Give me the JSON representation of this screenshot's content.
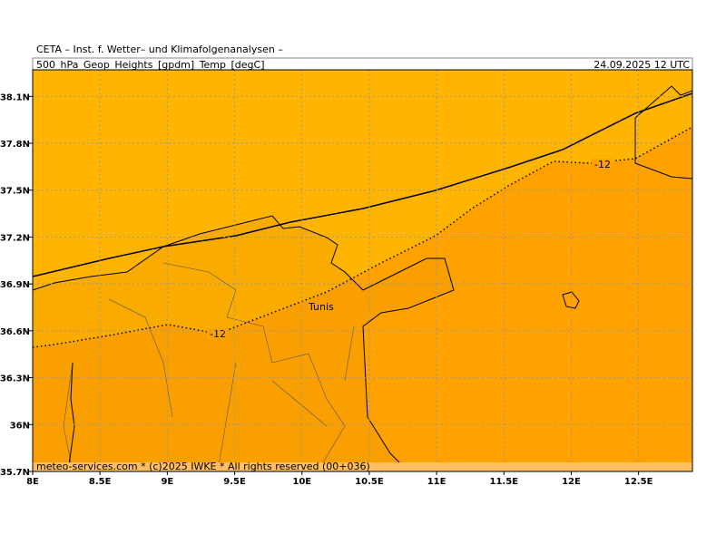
{
  "header": {
    "title": "CETA – Inst. f. Wetter– und Klimafolgenanalysen –",
    "field": "500_hPa_Geop_Heights_[gpdm]_Temp_[degC]",
    "valid_time": "24.09.2025 12 UTC"
  },
  "map": {
    "xlim": [
      8,
      12.9
    ],
    "ylim": [
      35.7,
      38.27
    ],
    "xticks": [
      {
        "value": 8,
        "label": "8E"
      },
      {
        "value": 8.5,
        "label": "8.5E"
      },
      {
        "value": 9,
        "label": "9E"
      },
      {
        "value": 9.5,
        "label": "9.5E"
      },
      {
        "value": 10,
        "label": "10E"
      },
      {
        "value": 10.5,
        "label": "10.5E"
      },
      {
        "value": 11,
        "label": "11E"
      },
      {
        "value": 11.5,
        "label": "11.5E"
      },
      {
        "value": 12,
        "label": "12E"
      },
      {
        "value": 12.5,
        "label": "12.5E"
      }
    ],
    "yticks": [
      {
        "value": 35.7,
        "label": "35.7N"
      },
      {
        "value": 36,
        "label": "36N"
      },
      {
        "value": 36.3,
        "label": "36.3N"
      },
      {
        "value": 36.6,
        "label": "36.6N"
      },
      {
        "value": 36.9,
        "label": "36.9N"
      },
      {
        "value": 37.2,
        "label": "37.2N"
      },
      {
        "value": 37.5,
        "label": "37.5N"
      },
      {
        "value": 37.8,
        "label": "37.8N"
      },
      {
        "value": 38.1,
        "label": "38.1N"
      }
    ],
    "city": "Tunis",
    "temperature_contour": -12,
    "footer": "meteo-services.com * (c)2025 IWKE * All rights reserved (00+036)"
  }
}
